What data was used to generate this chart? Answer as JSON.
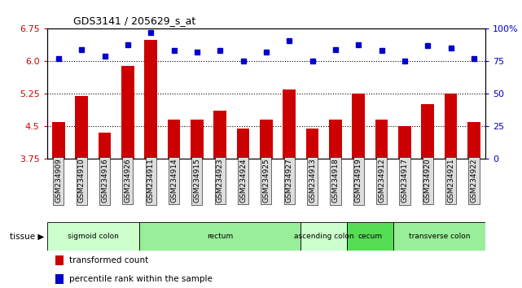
{
  "title": "GDS3141 / 205629_s_at",
  "samples": [
    "GSM234909",
    "GSM234910",
    "GSM234916",
    "GSM234926",
    "GSM234911",
    "GSM234914",
    "GSM234915",
    "GSM234923",
    "GSM234924",
    "GSM234925",
    "GSM234927",
    "GSM234913",
    "GSM234918",
    "GSM234919",
    "GSM234912",
    "GSM234917",
    "GSM234920",
    "GSM234921",
    "GSM234922"
  ],
  "bar_values": [
    4.6,
    5.2,
    4.35,
    5.9,
    6.5,
    4.65,
    4.65,
    4.85,
    4.45,
    4.65,
    5.35,
    4.45,
    4.65,
    5.25,
    4.65,
    4.5,
    5.0,
    5.25,
    4.6
  ],
  "blue_values": [
    77,
    84,
    79,
    88,
    97,
    83,
    82,
    83,
    75,
    82,
    91,
    75,
    84,
    88,
    83,
    75,
    87,
    85,
    77
  ],
  "bar_color": "#CC0000",
  "blue_color": "#0000CC",
  "ylim_left": [
    3.75,
    6.75
  ],
  "ylim_right": [
    0,
    100
  ],
  "yticks_left": [
    3.75,
    4.5,
    5.25,
    6.0,
    6.75
  ],
  "yticks_right": [
    0,
    25,
    50,
    75,
    100
  ],
  "hlines": [
    6.0,
    5.25,
    4.5
  ],
  "tissue_groups": [
    {
      "label": "sigmoid colon",
      "start": 0,
      "end": 4,
      "color": "#ccffcc"
    },
    {
      "label": "rectum",
      "start": 4,
      "end": 11,
      "color": "#99ee99"
    },
    {
      "label": "ascending colon",
      "start": 11,
      "end": 13,
      "color": "#ccffcc"
    },
    {
      "label": "cecum",
      "start": 13,
      "end": 15,
      "color": "#55dd55"
    },
    {
      "label": "transverse colon",
      "start": 15,
      "end": 19,
      "color": "#99ee99"
    }
  ],
  "legend_bar_label": "transformed count",
  "legend_blue_label": "percentile rank within the sample",
  "background_color": "#ffffff"
}
